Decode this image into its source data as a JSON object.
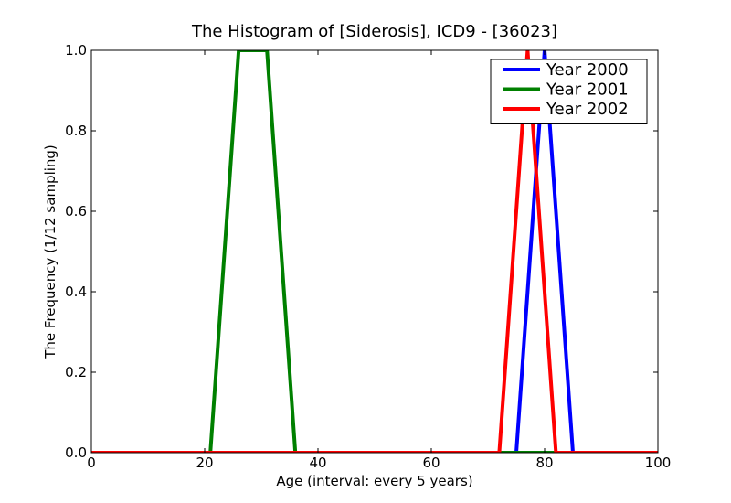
{
  "chart_data": {
    "type": "line",
    "title": "The Histogram of [Siderosis], ICD9 - [36023]",
    "xlabel": "Age (interval: every 5 years)",
    "ylabel": "The Frequency (1/12 sampling)",
    "xlim": [
      0,
      100
    ],
    "ylim": [
      0.0,
      1.0
    ],
    "x_ticks": [
      0,
      20,
      40,
      60,
      80,
      100
    ],
    "x_tick_labels": [
      "0",
      "20",
      "40",
      "60",
      "80",
      "100"
    ],
    "y_ticks": [
      0.0,
      0.2,
      0.4,
      0.6,
      0.8,
      1.0
    ],
    "y_tick_labels": [
      "0.0",
      "0.2",
      "0.4",
      "0.6",
      "0.8",
      "1.0"
    ],
    "grid": false,
    "legend_position": "top-right",
    "series": [
      {
        "name": "Year 2000",
        "color": "#0000ff",
        "x": [
          0,
          75,
          80,
          85,
          100
        ],
        "y": [
          0,
          0,
          1,
          0,
          0
        ]
      },
      {
        "name": "Year 2001",
        "color": "#008000",
        "x": [
          0,
          21,
          26,
          31,
          36,
          100
        ],
        "y": [
          0,
          0,
          1,
          1,
          0,
          0
        ]
      },
      {
        "name": "Year 2002",
        "color": "#ff0000",
        "x": [
          0,
          72,
          77,
          82,
          100
        ],
        "y": [
          0,
          0,
          1,
          0,
          0
        ]
      }
    ]
  }
}
